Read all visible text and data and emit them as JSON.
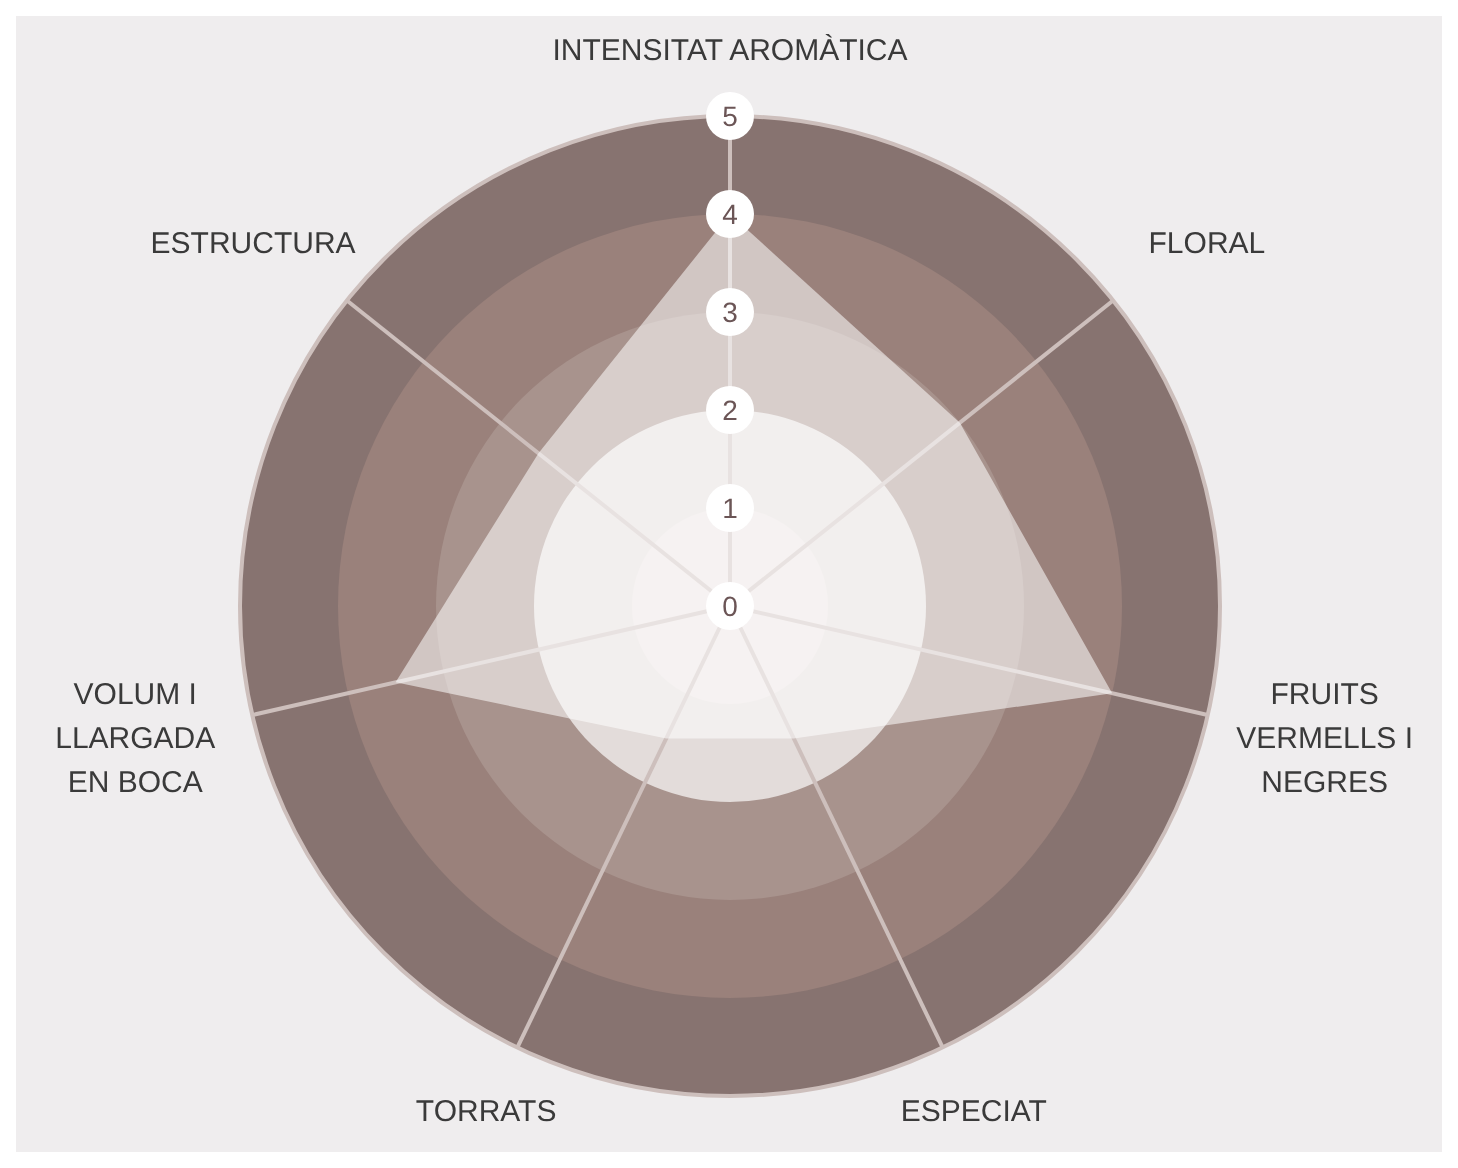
{
  "chart_data": {
    "type": "radar",
    "categories": [
      "INTENSITAT AROMÀTICA",
      "FLORAL",
      "FRUITS VERMELLS I NEGRES",
      "ESPECIAT",
      "TORRATS",
      "VOLUM I LLARGADA EN BOCA",
      "ESTRUCTURA"
    ],
    "series": [
      {
        "color": "#ffffff",
        "values": [
          4,
          3,
          4,
          1.5,
          1.5,
          3.5,
          2.5
        ]
      }
    ],
    "ylim": [
      0,
      5
    ],
    "yticks": [
      0,
      1,
      2,
      3,
      4,
      5
    ],
    "grid": true
  }
}
